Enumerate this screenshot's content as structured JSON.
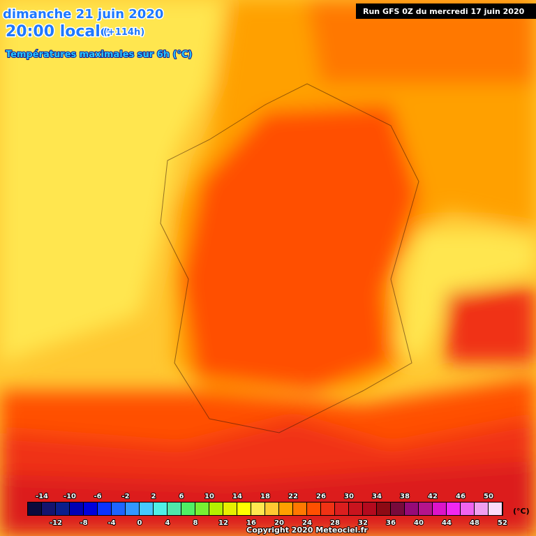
{
  "header": {
    "date": "dimanche 21 juin 2020",
    "time": "20:00 locale",
    "offset": "(+114h)",
    "subtitle": "Températures maximales sur 6h (°C)",
    "run": "Run GFS 0Z du mercredi 17 juin 2020"
  },
  "legend": {
    "unit": "(°C)",
    "top_labels": [
      -14,
      -10,
      -6,
      -2,
      2,
      6,
      10,
      14,
      18,
      22,
      26,
      30,
      34,
      38,
      42,
      46,
      50
    ],
    "bottom_labels": [
      -12,
      -8,
      -4,
      0,
      4,
      8,
      12,
      16,
      20,
      24,
      28,
      32,
      36,
      40,
      44,
      48,
      52
    ],
    "colors": [
      "#0a0a3c",
      "#14146e",
      "#0a1e8c",
      "#0000b4",
      "#0000dc",
      "#0a32ff",
      "#1e64ff",
      "#3296ff",
      "#46c8ff",
      "#50f0e6",
      "#50e6aa",
      "#50f064",
      "#78f032",
      "#b4f000",
      "#e6f000",
      "#ffff00",
      "#ffe650",
      "#ffc832",
      "#ffa000",
      "#ff7800",
      "#ff5000",
      "#f03214",
      "#dc1e1e",
      "#c8141e",
      "#b40a1e",
      "#8c0a14",
      "#780a3c",
      "#960a78",
      "#b4148c",
      "#dc14c8",
      "#f028f0",
      "#f064f0",
      "#f0a0f0",
      "#fadcfa"
    ]
  },
  "footer": "Copyright 2020 Meteociel.fr"
}
